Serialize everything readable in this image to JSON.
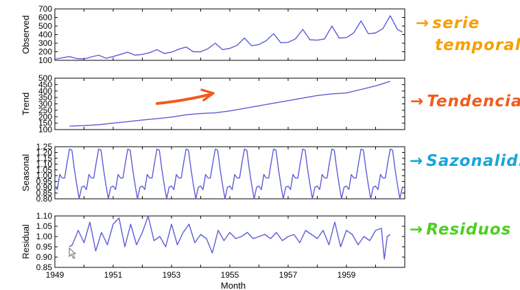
{
  "chart_data": [
    {
      "type": "line",
      "ylabel": "Observed",
      "ylim": [
        100,
        700
      ],
      "yticks": [
        "100",
        "200",
        "300",
        "400",
        "500",
        "600",
        "700"
      ],
      "color": "#5b5bd6",
      "series": [
        {
          "x": [
            1949.0,
            1949.25,
            1949.5,
            1949.75,
            1950.0,
            1950.25,
            1950.5,
            1950.75,
            1951.0,
            1951.25,
            1951.5,
            1951.75,
            1952.0,
            1952.25,
            1952.5,
            1952.75,
            1953.0,
            1953.25,
            1953.5,
            1953.75,
            1954.0,
            1954.25,
            1954.5,
            1954.75,
            1955.0,
            1955.25,
            1955.5,
            1955.75,
            1956.0,
            1956.25,
            1956.5,
            1956.75,
            1957.0,
            1957.25,
            1957.5,
            1957.75,
            1958.0,
            1958.25,
            1958.5,
            1958.75,
            1959.0,
            1959.25,
            1959.5,
            1959.75,
            1960.0,
            1960.25,
            1960.5,
            1960.75,
            1960.917
          ],
          "values": [
            112,
            130,
            145,
            120,
            116,
            140,
            160,
            125,
            145,
            170,
            195,
            160,
            170,
            190,
            225,
            180,
            195,
            230,
            255,
            200,
            200,
            235,
            300,
            225,
            240,
            275,
            360,
            270,
            285,
            330,
            410,
            305,
            310,
            350,
            460,
            340,
            335,
            350,
            500,
            360,
            365,
            420,
            560,
            410,
            420,
            470,
            620,
            460,
            430
          ]
        }
      ]
    },
    {
      "type": "line",
      "ylabel": "Trend",
      "ylim": [
        100,
        500
      ],
      "yticks": [
        "100",
        "150",
        "200",
        "250",
        "300",
        "350",
        "400",
        "450",
        "500"
      ],
      "color": "#5b5bd6",
      "series": [
        {
          "x": [
            1949.5,
            1950.0,
            1950.5,
            1951.0,
            1951.5,
            1952.0,
            1952.5,
            1953.0,
            1953.5,
            1954.0,
            1954.5,
            1955.0,
            1955.5,
            1956.0,
            1956.5,
            1957.0,
            1957.5,
            1958.0,
            1958.5,
            1959.0,
            1959.5,
            1960.0,
            1960.5
          ],
          "values": [
            127,
            131,
            138,
            150,
            162,
            174,
            185,
            197,
            215,
            225,
            230,
            245,
            265,
            285,
            305,
            325,
            345,
            365,
            378,
            385,
            412,
            440,
            475
          ]
        }
      ]
    },
    {
      "type": "line",
      "ylabel": "Seasonal",
      "ylim": [
        0.8,
        1.25
      ],
      "yticks": [
        "0.80",
        "0.85",
        "0.90",
        "0.95",
        "1.00",
        "1.05",
        "1.10",
        "1.15",
        "1.20",
        "1.25"
      ],
      "color": "#5b5bd6",
      "pattern": [
        0.91,
        0.88,
        1.01,
        0.98,
        0.98,
        1.11,
        1.23,
        1.22,
        1.06,
        0.92,
        0.8,
        0.9
      ],
      "series": [
        {
          "x_start": 1949.0,
          "x_end": 1960.917
        }
      ]
    },
    {
      "type": "line",
      "ylabel": "Residual",
      "xlabel": "Month",
      "ylim": [
        0.85,
        1.1
      ],
      "yticks": [
        "0.85",
        "0.90",
        "0.95",
        "1.00",
        "1.05",
        "1.10"
      ],
      "xticks": [
        "1949",
        "1951",
        "1953",
        "1955",
        "1957",
        "1959"
      ],
      "color": "#5b5bd6",
      "series": [
        {
          "x": [
            1949.5,
            1949.6,
            1949.8,
            1950.0,
            1950.2,
            1950.4,
            1950.6,
            1950.8,
            1951.0,
            1951.2,
            1951.4,
            1951.6,
            1951.8,
            1952.0,
            1952.2,
            1952.4,
            1952.6,
            1952.8,
            1953.0,
            1953.2,
            1953.4,
            1953.6,
            1953.8,
            1954.0,
            1954.2,
            1954.4,
            1954.6,
            1954.8,
            1955.0,
            1955.2,
            1955.4,
            1955.6,
            1955.8,
            1956.0,
            1956.2,
            1956.4,
            1956.6,
            1956.8,
            1957.0,
            1957.2,
            1957.4,
            1957.6,
            1957.8,
            1958.0,
            1958.2,
            1958.4,
            1958.6,
            1958.8,
            1959.0,
            1959.2,
            1959.4,
            1959.6,
            1959.8,
            1960.0,
            1960.2,
            1960.3,
            1960.4,
            1960.5
          ],
          "values": [
            0.95,
            0.96,
            1.03,
            0.97,
            1.07,
            0.93,
            1.02,
            0.96,
            1.06,
            1.09,
            0.95,
            1.06,
            0.96,
            1.02,
            1.1,
            0.98,
            1.0,
            0.95,
            1.06,
            0.96,
            1.02,
            1.06,
            0.97,
            1.01,
            0.99,
            0.92,
            1.03,
            0.98,
            1.02,
            0.99,
            1.0,
            1.02,
            0.99,
            1.0,
            1.01,
            0.99,
            1.02,
            0.98,
            1.0,
            1.01,
            0.97,
            1.03,
            1.01,
            0.99,
            1.03,
            0.96,
            1.07,
            0.95,
            1.03,
            1.01,
            0.96,
            1.0,
            0.98,
            1.03,
            1.04,
            0.89,
            1.0,
            1.01
          ]
        }
      ]
    }
  ],
  "annotations": {
    "serie_line1": "serie",
    "serie_line2": "temporal",
    "tendencia": "Tendencia",
    "sazonalid": "Sazonalid.",
    "residuos": "Residuos",
    "arrow": "→"
  },
  "colors": {
    "line": "#5b5bd6",
    "serie": "#f5a000",
    "tendencia": "#f25a1a",
    "sazonalid": "#18a6d8",
    "residuos": "#4ccf1f",
    "trend_arrow": "#f25a1a"
  },
  "cursor_icon": "mouse-pointer-icon"
}
